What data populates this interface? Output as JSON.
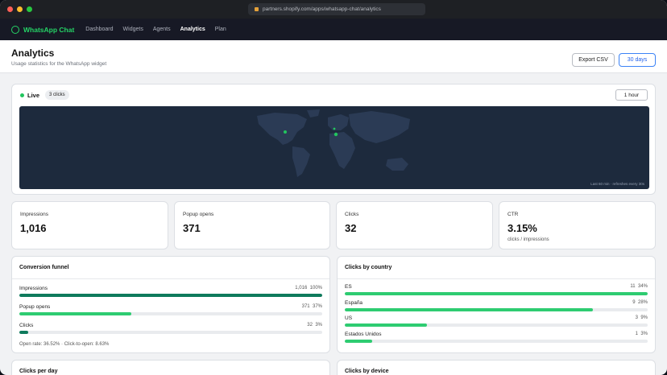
{
  "browser": {
    "url": "partners.shopify.com/apps/whatsapp-chat/analytics",
    "traffic_colors": [
      "#ff5f57",
      "#febc2e",
      "#28c840"
    ]
  },
  "app": {
    "brand": "WhatsApp Chat",
    "brand_icon": "whatsapp-icon",
    "accent": "#25d366",
    "nav": [
      {
        "label": "Dashboard",
        "active": false
      },
      {
        "label": "Widgets",
        "active": false
      },
      {
        "label": "Agents",
        "active": false
      },
      {
        "label": "Analytics",
        "active": true
      },
      {
        "label": "Plan",
        "active": false
      }
    ]
  },
  "header": {
    "title": "Analytics",
    "subtitle": "Usage statistics for the WhatsApp widget",
    "export_label": "Export CSV",
    "range_label": "30 days"
  },
  "live": {
    "label": "Live",
    "badge": "3 clicks",
    "interval": "1 hour",
    "caption": "Last 60 min · refreshes every 30s",
    "map_bg": "#1d2a3d",
    "land_color": "#2b3b55"
  },
  "stats": [
    {
      "label": "Impressions",
      "value": "1,016",
      "note": ""
    },
    {
      "label": "Popup opens",
      "value": "371",
      "note": ""
    },
    {
      "label": "Clicks",
      "value": "32",
      "note": ""
    },
    {
      "label": "CTR",
      "value": "3.15%",
      "note": "clicks / impressions"
    }
  ],
  "funnel": {
    "title": "Conversion funnel",
    "bar_color": "#0f7a5c",
    "rows": [
      {
        "label": "Impressions",
        "count": "1,016",
        "pct_label": "100%",
        "pct": 100,
        "color": "#0f7a5c"
      },
      {
        "label": "Popup opens",
        "count": "371",
        "pct_label": "37%",
        "pct": 37,
        "color": "#2ecc71"
      },
      {
        "label": "Clicks",
        "count": "32",
        "pct_label": "3%",
        "pct": 3,
        "color": "#0f7a5c"
      }
    ],
    "note": "Open rate: 36.52% · Click-to-open: 8.63%"
  },
  "countries": {
    "title": "Clicks by country",
    "bar_color": "#2ecc71",
    "rows": [
      {
        "label": "ES",
        "count": "11",
        "pct_label": "34%",
        "pct": 100
      },
      {
        "label": "España",
        "count": "9",
        "pct_label": "28%",
        "pct": 82
      },
      {
        "label": "US",
        "count": "3",
        "pct_label": "9%",
        "pct": 27
      },
      {
        "label": "Estados Unidos",
        "count": "1",
        "pct_label": "3%",
        "pct": 9
      }
    ]
  },
  "bottom": {
    "left_title": "Clicks per day",
    "right_title": "Clicks by device"
  }
}
